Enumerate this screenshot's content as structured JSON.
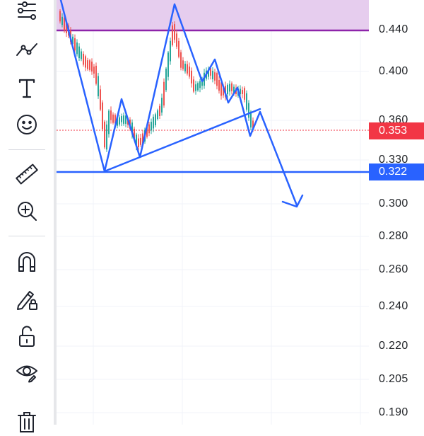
{
  "toolbar": {
    "tools": [
      {
        "icon": "multi-line-tool-icon"
      },
      {
        "icon": "trend-line-icon"
      },
      {
        "icon": "text-tool-icon"
      },
      {
        "icon": "emoji-icon"
      },
      {
        "icon": "ruler-icon"
      },
      {
        "icon": "zoom-in-icon"
      },
      {
        "icon": "magnet-icon"
      },
      {
        "icon": "lock-drawing-icon"
      },
      {
        "icon": "unlock-icon"
      },
      {
        "icon": "eye-icon"
      },
      {
        "icon": "trash-icon"
      }
    ]
  },
  "price_axis": {
    "ticks": [
      "0.440",
      "0.400",
      "0.360",
      "0.330",
      "0.300",
      "0.280",
      "0.260",
      "0.240",
      "0.220",
      "0.205",
      "0.190"
    ],
    "current_price": {
      "label": "0.353",
      "color": "#f23645"
    },
    "line_price": {
      "label": "0.322",
      "color": "#2962ff"
    }
  },
  "colors": {
    "up": "#26a69a",
    "down": "#ef5350",
    "drawing": "#2962ff",
    "zone_fill": "#e6cdee",
    "zone_border": "#8e24aa"
  }
}
